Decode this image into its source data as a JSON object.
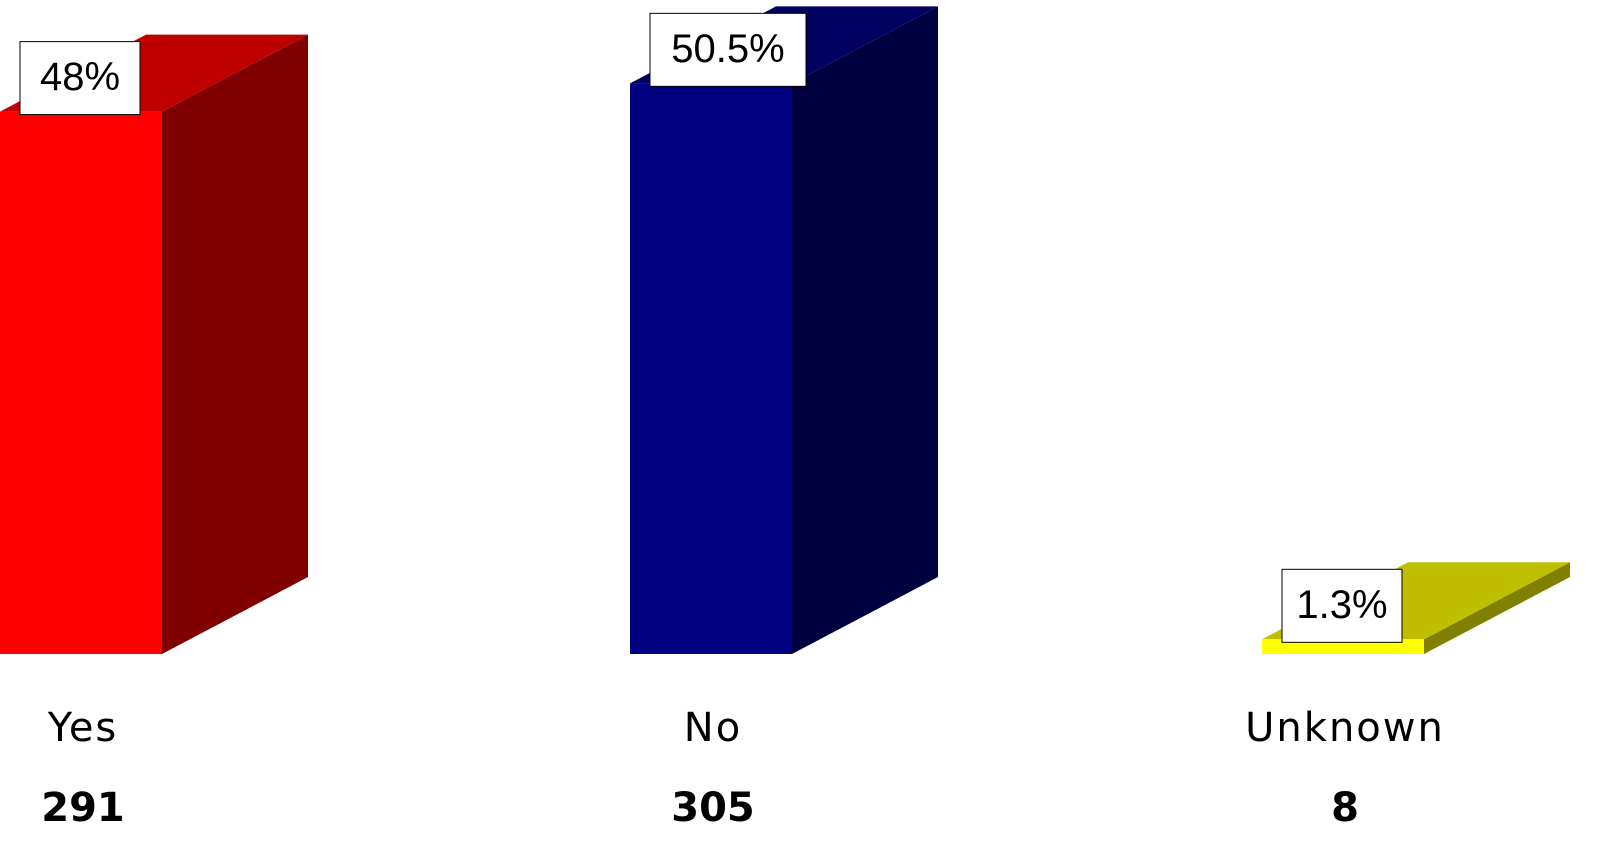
{
  "chart_data": {
    "type": "bar3d",
    "categories": [
      "Yes",
      "No",
      "Unknown"
    ],
    "values": [
      48,
      50.5,
      1.3
    ],
    "value_labels": [
      "48%",
      "50.5%",
      "1.3%"
    ],
    "counts": [
      291,
      305,
      8
    ],
    "colors": [
      "#ff0000",
      "#000080",
      "#ffff00"
    ]
  }
}
